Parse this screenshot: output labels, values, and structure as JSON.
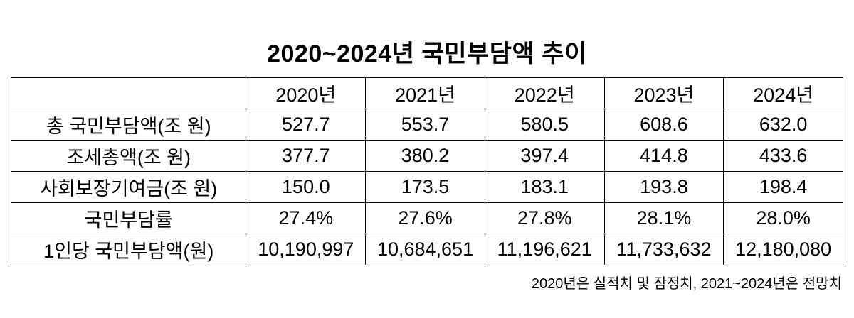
{
  "title": "2020~2024년 국민부담액 추이",
  "footnote": "2020년은 실적치 및 잠정치, 2021~2024년은 전망치",
  "chart_data": {
    "type": "table",
    "title": "2020~2024년 국민부담액 추이",
    "columns": [
      "",
      "2020년",
      "2021년",
      "2022년",
      "2023년",
      "2024년"
    ],
    "rows": [
      {
        "label": "총 국민부담액(조 원)",
        "values": [
          "527.7",
          "553.7",
          "580.5",
          "608.6",
          "632.0"
        ]
      },
      {
        "label": "조세총액(조 원)",
        "values": [
          "377.7",
          "380.2",
          "397.4",
          "414.8",
          "433.6"
        ]
      },
      {
        "label": "사회보장기여금(조 원)",
        "values": [
          "150.0",
          "173.5",
          "183.1",
          "193.8",
          "198.4"
        ]
      },
      {
        "label": "국민부담률",
        "values": [
          "27.4%",
          "27.6%",
          "27.8%",
          "28.1%",
          "28.0%"
        ]
      },
      {
        "label": "1인당 국민부담액(원)",
        "values": [
          "10,190,997",
          "10,684,651",
          "11,196,621",
          "11,733,632",
          "12,180,080"
        ]
      }
    ],
    "note": "2020년은 실적치 및 잠정치, 2021~2024년은 전망치",
    "layout": {
      "grid": "on",
      "border_color": "#000000",
      "background": "#ffffff"
    }
  }
}
